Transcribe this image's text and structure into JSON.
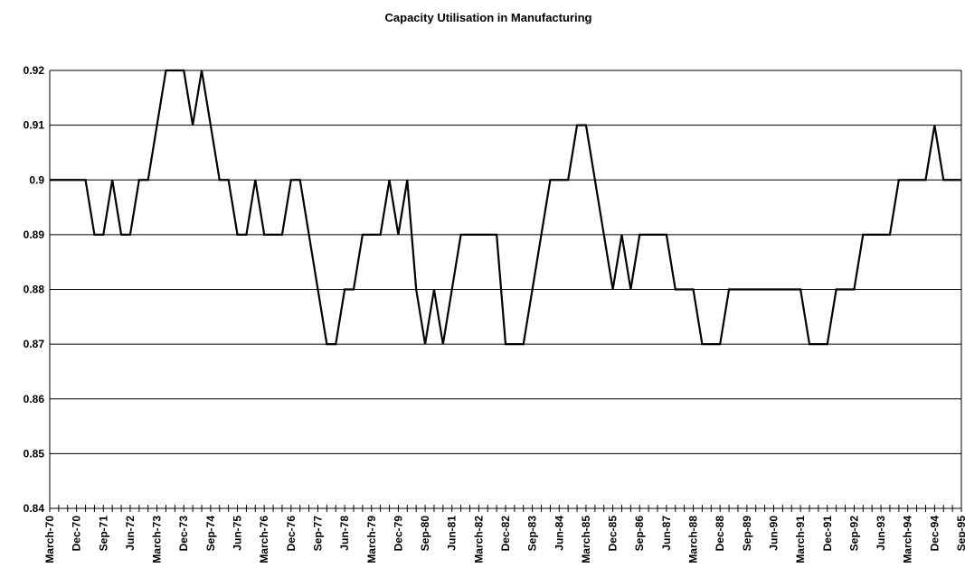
{
  "chart_data": {
    "type": "line",
    "title": "Capacity Utilisation in Manufacturing",
    "categories": [
      "March-70",
      null,
      null,
      "Dec-70",
      null,
      null,
      "Sep-71",
      null,
      null,
      "Jun-72",
      null,
      null,
      "March-73",
      null,
      null,
      "Dec-73",
      null,
      null,
      "Sep-74",
      null,
      null,
      "Jun-75",
      null,
      null,
      "March-76",
      null,
      null,
      "Dec-76",
      null,
      null,
      "Sep-77",
      null,
      null,
      "Jun-78",
      null,
      null,
      "March-79",
      null,
      null,
      "Dec-79",
      null,
      null,
      "Sep-80",
      null,
      null,
      "Jun-81",
      null,
      null,
      "March-82",
      null,
      null,
      "Dec-82",
      null,
      null,
      "Sep-83",
      null,
      null,
      "Jun-84",
      null,
      null,
      "March-85",
      null,
      null,
      "Dec-85",
      null,
      null,
      "Sep-86",
      null,
      null,
      "Jun-87",
      null,
      null,
      "March-88",
      null,
      null,
      "Dec-88",
      null,
      null,
      "Sep-89",
      null,
      null,
      "Jun-90",
      null,
      null,
      "March-91",
      null,
      null,
      "Dec-91",
      null,
      null,
      "Sep-92",
      null,
      null,
      "Jun-93",
      null,
      null,
      "March-94",
      null,
      null,
      "Dec-94",
      null,
      null,
      "Sep-95"
    ],
    "values": [
      0.9,
      0.9,
      0.9,
      0.9,
      0.9,
      0.89,
      0.89,
      0.9,
      0.89,
      0.89,
      0.9,
      0.9,
      0.91,
      0.92,
      0.92,
      0.92,
      0.91,
      0.92,
      0.91,
      0.9,
      0.9,
      0.89,
      0.89,
      0.9,
      0.89,
      0.89,
      0.89,
      0.9,
      0.9,
      0.89,
      0.88,
      0.87,
      0.87,
      0.88,
      0.88,
      0.89,
      0.89,
      0.89,
      0.9,
      0.89,
      0.9,
      0.88,
      0.87,
      0.88,
      0.87,
      0.88,
      0.89,
      0.89,
      0.89,
      0.89,
      0.89,
      0.87,
      0.87,
      0.87,
      0.88,
      0.89,
      0.9,
      0.9,
      0.9,
      0.91,
      0.91,
      0.9,
      0.89,
      0.88,
      0.89,
      0.88,
      0.89,
      0.89,
      0.89,
      0.89,
      0.88,
      0.88,
      0.88,
      0.87,
      0.87,
      0.87,
      0.88,
      0.88,
      0.88,
      0.88,
      0.88,
      0.88,
      0.88,
      0.88,
      0.88,
      0.87,
      0.87,
      0.87,
      0.88,
      0.88,
      0.88,
      0.89,
      0.89,
      0.89,
      0.89,
      0.9,
      0.9,
      0.9,
      0.9,
      0.91,
      0.9,
      0.9,
      0.9
    ],
    "color": "#000000",
    "ylim": [
      0.84,
      0.92
    ],
    "yticks": [
      0.84,
      0.85,
      0.86,
      0.87,
      0.88,
      0.89,
      0.9,
      0.91,
      0.92
    ],
    "grid": true
  }
}
